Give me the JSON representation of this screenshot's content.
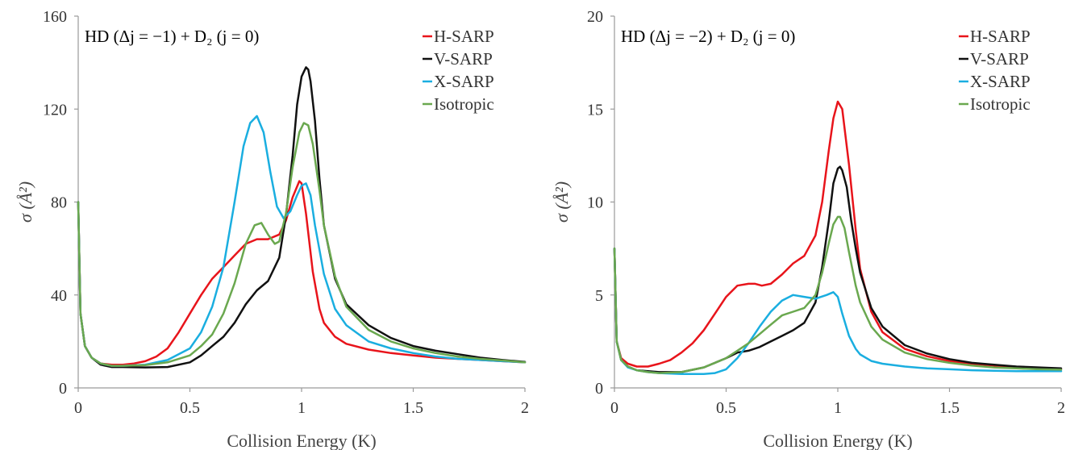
{
  "chart_data": [
    {
      "type": "line",
      "title": "HD (Δj = −1) + D₂ (j = 0)",
      "xlabel": "Collision Energy (K)",
      "ylabel": "σ (Å²)",
      "xlim": [
        0,
        2
      ],
      "ylim": [
        0,
        160
      ],
      "xticks": [
        0,
        0.5,
        1,
        1.5,
        2
      ],
      "xtick_labels": [
        "0",
        "0.5",
        "1",
        "1.5",
        "2"
      ],
      "yticks": [
        0,
        40,
        80,
        120,
        160
      ],
      "ytick_labels": [
        "0",
        "40",
        "80",
        "120",
        "160"
      ],
      "grid": false,
      "legend": "top-right",
      "series": [
        {
          "name": "H-SARP",
          "color": "#e8141b",
          "x": [
            0,
            0.01,
            0.03,
            0.06,
            0.1,
            0.15,
            0.2,
            0.25,
            0.3,
            0.35,
            0.4,
            0.45,
            0.5,
            0.55,
            0.6,
            0.65,
            0.7,
            0.75,
            0.8,
            0.85,
            0.9,
            0.93,
            0.96,
            0.99,
            1.0,
            1.02,
            1.05,
            1.08,
            1.1,
            1.15,
            1.2,
            1.3,
            1.4,
            1.5,
            1.6,
            1.7,
            1.8,
            1.9,
            2.0
          ],
          "y": [
            80,
            32,
            18,
            13,
            10.5,
            10,
            10,
            10.5,
            11.5,
            13.5,
            17,
            24,
            32,
            40,
            47,
            52,
            57,
            62,
            64,
            64,
            66,
            72,
            82,
            89,
            88,
            75,
            50,
            34,
            28,
            22,
            19,
            16.5,
            15,
            14,
            13,
            12.5,
            12,
            11.5,
            11
          ]
        },
        {
          "name": "V-SARP",
          "color": "#111111",
          "x": [
            0,
            0.01,
            0.03,
            0.06,
            0.1,
            0.15,
            0.2,
            0.3,
            0.4,
            0.5,
            0.55,
            0.6,
            0.65,
            0.7,
            0.75,
            0.8,
            0.85,
            0.9,
            0.93,
            0.96,
            0.98,
            1.0,
            1.02,
            1.03,
            1.04,
            1.06,
            1.08,
            1.1,
            1.15,
            1.2,
            1.3,
            1.4,
            1.5,
            1.6,
            1.7,
            1.8,
            1.9,
            2.0
          ],
          "y": [
            80,
            32,
            18,
            13,
            10,
            9,
            9,
            8.8,
            9,
            11,
            14,
            18,
            22,
            28,
            36,
            42,
            46,
            56,
            74,
            100,
            122,
            134,
            138,
            137,
            132,
            115,
            90,
            70,
            47,
            36,
            27,
            21.5,
            18,
            16,
            14.5,
            13,
            12,
            11.2
          ]
        },
        {
          "name": "X-SARP",
          "color": "#1aaee0",
          "x": [
            0,
            0.01,
            0.03,
            0.06,
            0.1,
            0.15,
            0.2,
            0.3,
            0.4,
            0.5,
            0.55,
            0.6,
            0.65,
            0.7,
            0.74,
            0.77,
            0.8,
            0.83,
            0.86,
            0.89,
            0.92,
            0.95,
            0.98,
            1.0,
            1.02,
            1.04,
            1.06,
            1.1,
            1.15,
            1.2,
            1.3,
            1.4,
            1.5,
            1.6,
            1.7,
            1.8,
            1.9,
            2.0
          ],
          "y": [
            80,
            32,
            18,
            13,
            10.5,
            9.5,
            9.5,
            10,
            12,
            17,
            24,
            35,
            52,
            80,
            104,
            114,
            117,
            110,
            93,
            78,
            73,
            76,
            83,
            87,
            88,
            83,
            70,
            49,
            34,
            27,
            20,
            17,
            15,
            13.5,
            12.5,
            12,
            11.5,
            11
          ]
        },
        {
          "name": "Isotropic",
          "color": "#6aa84f",
          "x": [
            0,
            0.01,
            0.03,
            0.06,
            0.1,
            0.15,
            0.2,
            0.3,
            0.4,
            0.5,
            0.55,
            0.6,
            0.65,
            0.7,
            0.75,
            0.79,
            0.82,
            0.85,
            0.88,
            0.9,
            0.93,
            0.96,
            0.99,
            1.01,
            1.03,
            1.05,
            1.08,
            1.1,
            1.15,
            1.2,
            1.3,
            1.4,
            1.5,
            1.6,
            1.7,
            1.8,
            1.9,
            2.0
          ],
          "y": [
            80,
            32,
            18,
            13,
            10.5,
            9.5,
            9.5,
            9.8,
            11,
            14,
            18,
            23,
            32,
            45,
            62,
            70,
            71,
            66,
            62,
            63,
            75,
            95,
            110,
            114,
            113,
            105,
            85,
            70,
            48,
            35,
            25,
            20,
            17,
            15,
            13.5,
            12.5,
            11.8,
            11
          ]
        }
      ]
    },
    {
      "type": "line",
      "title": "HD (Δj = −2) + D₂ (j = 0)",
      "xlabel": "Collision Energy (K)",
      "ylabel": "σ (Å²)",
      "xlim": [
        0,
        2
      ],
      "ylim": [
        0,
        20
      ],
      "xticks": [
        0,
        0.5,
        1,
        1.5,
        2
      ],
      "xtick_labels": [
        "0",
        "0.5",
        "1",
        "1.5",
        "2"
      ],
      "yticks": [
        0,
        5,
        10,
        15,
        20
      ],
      "ytick_labels": [
        "0",
        "5",
        "10",
        "15",
        "20"
      ],
      "grid": false,
      "legend": "top-right",
      "series": [
        {
          "name": "H-SARP",
          "color": "#e8141b",
          "x": [
            0,
            0.01,
            0.03,
            0.06,
            0.1,
            0.15,
            0.2,
            0.25,
            0.3,
            0.35,
            0.4,
            0.45,
            0.5,
            0.55,
            0.6,
            0.63,
            0.66,
            0.7,
            0.75,
            0.8,
            0.85,
            0.9,
            0.93,
            0.96,
            0.98,
            1.0,
            1.02,
            1.05,
            1.08,
            1.1,
            1.15,
            1.2,
            1.3,
            1.4,
            1.5,
            1.6,
            1.7,
            1.8,
            1.9,
            2.0
          ],
          "y": [
            7.5,
            2.5,
            1.6,
            1.3,
            1.15,
            1.15,
            1.3,
            1.5,
            1.9,
            2.4,
            3.1,
            4.0,
            4.9,
            5.5,
            5.6,
            5.6,
            5.5,
            5.6,
            6.1,
            6.7,
            7.1,
            8.2,
            10.0,
            12.8,
            14.5,
            15.4,
            15.0,
            12.0,
            8.5,
            6.4,
            4.1,
            3.0,
            2.1,
            1.7,
            1.45,
            1.3,
            1.2,
            1.1,
            1.05,
            1.0
          ]
        },
        {
          "name": "V-SARP",
          "color": "#111111",
          "x": [
            0,
            0.01,
            0.03,
            0.06,
            0.1,
            0.15,
            0.2,
            0.3,
            0.4,
            0.5,
            0.55,
            0.6,
            0.65,
            0.7,
            0.75,
            0.8,
            0.85,
            0.9,
            0.93,
            0.96,
            0.98,
            1.0,
            1.01,
            1.02,
            1.04,
            1.06,
            1.08,
            1.1,
            1.15,
            1.2,
            1.3,
            1.4,
            1.5,
            1.6,
            1.7,
            1.8,
            1.9,
            2.0
          ],
          "y": [
            7.5,
            2.5,
            1.5,
            1.15,
            0.95,
            0.9,
            0.85,
            0.85,
            1.1,
            1.6,
            1.9,
            2.0,
            2.2,
            2.5,
            2.8,
            3.1,
            3.5,
            4.6,
            6.5,
            9.0,
            11.0,
            11.8,
            11.9,
            11.7,
            10.8,
            9.0,
            7.5,
            6.2,
            4.3,
            3.3,
            2.3,
            1.85,
            1.55,
            1.35,
            1.25,
            1.15,
            1.1,
            1.05
          ]
        },
        {
          "name": "X-SARP",
          "color": "#1aaee0",
          "x": [
            0,
            0.01,
            0.03,
            0.06,
            0.1,
            0.15,
            0.2,
            0.3,
            0.4,
            0.45,
            0.5,
            0.55,
            0.6,
            0.65,
            0.7,
            0.75,
            0.8,
            0.85,
            0.9,
            0.95,
            0.98,
            1.0,
            1.02,
            1.05,
            1.08,
            1.1,
            1.15,
            1.2,
            1.3,
            1.4,
            1.5,
            1.6,
            1.7,
            1.8,
            1.9,
            2.0
          ],
          "y": [
            7.5,
            2.5,
            1.5,
            1.1,
            0.95,
            0.85,
            0.8,
            0.75,
            0.75,
            0.8,
            1.0,
            1.6,
            2.4,
            3.3,
            4.1,
            4.7,
            5.0,
            4.9,
            4.8,
            5.0,
            5.15,
            4.9,
            4.0,
            2.8,
            2.1,
            1.8,
            1.45,
            1.3,
            1.15,
            1.05,
            1.0,
            0.95,
            0.92,
            0.9,
            0.9,
            0.9
          ]
        },
        {
          "name": "Isotropic",
          "color": "#6aa84f",
          "x": [
            0,
            0.01,
            0.03,
            0.06,
            0.1,
            0.15,
            0.2,
            0.3,
            0.4,
            0.5,
            0.55,
            0.6,
            0.65,
            0.7,
            0.75,
            0.8,
            0.85,
            0.9,
            0.93,
            0.96,
            0.98,
            1.0,
            1.01,
            1.03,
            1.05,
            1.08,
            1.1,
            1.15,
            1.2,
            1.3,
            1.4,
            1.5,
            1.6,
            1.7,
            1.8,
            1.9,
            2.0
          ],
          "y": [
            7.5,
            2.5,
            1.5,
            1.15,
            0.95,
            0.85,
            0.8,
            0.85,
            1.1,
            1.6,
            2.0,
            2.4,
            2.9,
            3.4,
            3.9,
            4.1,
            4.3,
            5.0,
            6.2,
            7.8,
            8.8,
            9.2,
            9.2,
            8.6,
            7.3,
            5.5,
            4.6,
            3.3,
            2.6,
            1.9,
            1.55,
            1.35,
            1.2,
            1.1,
            1.05,
            1.0,
            0.98
          ]
        }
      ]
    }
  ]
}
